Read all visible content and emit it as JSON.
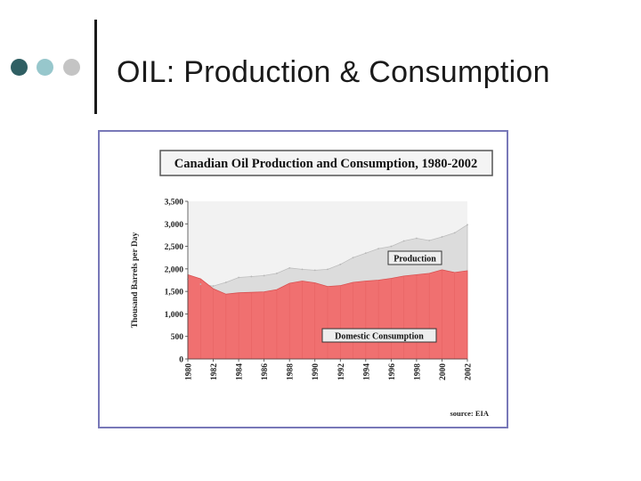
{
  "slide": {
    "title": "OIL: Production & Consumption",
    "dots": [
      {
        "name": "dot-dark",
        "color": "#2f5f63"
      },
      {
        "name": "dot-teal",
        "color": "#97c7cc"
      },
      {
        "name": "dot-grey",
        "color": "#c4c4c4"
      }
    ]
  },
  "chart_data": {
    "type": "area",
    "title": "Canadian Oil Production and Consumption, 1980-2002",
    "ylabel": "Thousand Barrels per Day",
    "xlabel": "",
    "ylim": [
      0,
      3500
    ],
    "yticks": [
      0,
      500,
      1000,
      1500,
      2000,
      2500,
      3000,
      3500
    ],
    "ytick_labels": [
      "0",
      "500",
      "1,000",
      "1,500",
      "2,000",
      "2,500",
      "3,000",
      "3,500"
    ],
    "x": [
      1980,
      1981,
      1982,
      1983,
      1984,
      1985,
      1986,
      1987,
      1988,
      1989,
      1990,
      1991,
      1992,
      1993,
      1994,
      1995,
      1996,
      1997,
      1998,
      1999,
      2000,
      2001,
      2002
    ],
    "xtick_labels": [
      "1980",
      "1982",
      "1984",
      "1986",
      "1988",
      "1990",
      "1992",
      "1994",
      "1996",
      "1998",
      "2000",
      "2002"
    ],
    "series": [
      {
        "name": "Production",
        "color": "#dcdcdc",
        "values": [
          1770,
          1660,
          1620,
          1700,
          1810,
          1830,
          1850,
          1900,
          2020,
          1990,
          1970,
          1990,
          2100,
          2250,
          2350,
          2450,
          2500,
          2620,
          2680,
          2630,
          2710,
          2800,
          2980
        ]
      },
      {
        "name": "Domestic Consumption",
        "color": "#f07070",
        "values": [
          1870,
          1780,
          1560,
          1440,
          1470,
          1480,
          1490,
          1540,
          1680,
          1730,
          1690,
          1610,
          1630,
          1700,
          1730,
          1750,
          1790,
          1840,
          1870,
          1900,
          1980,
          1920,
          1960
        ]
      }
    ],
    "annotations": [
      "Production",
      "Domestic Consumption"
    ],
    "source": "source: EIA",
    "colors": {
      "plot_bg": "#f2f2f2",
      "frame": "#7878b8",
      "title_border": "#555555"
    }
  }
}
